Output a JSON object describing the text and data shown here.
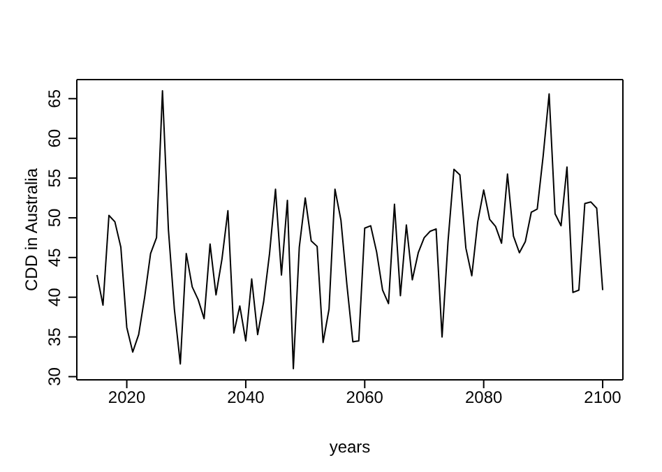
{
  "chart_data": {
    "type": "line",
    "xlabel": "years",
    "ylabel": "CDD in Australia",
    "x": [
      2015,
      2016,
      2017,
      2018,
      2019,
      2020,
      2021,
      2022,
      2023,
      2024,
      2025,
      2026,
      2027,
      2028,
      2029,
      2030,
      2031,
      2032,
      2033,
      2034,
      2035,
      2036,
      2037,
      2038,
      2039,
      2040,
      2041,
      2042,
      2043,
      2044,
      2045,
      2046,
      2047,
      2048,
      2049,
      2050,
      2051,
      2052,
      2053,
      2054,
      2055,
      2056,
      2057,
      2058,
      2059,
      2060,
      2061,
      2062,
      2063,
      2064,
      2065,
      2066,
      2067,
      2068,
      2069,
      2070,
      2071,
      2072,
      2073,
      2074,
      2075,
      2076,
      2077,
      2078,
      2079,
      2080,
      2081,
      2082,
      2083,
      2084,
      2085,
      2086,
      2087,
      2088,
      2089,
      2090,
      2091,
      2092,
      2093,
      2094,
      2095,
      2096,
      2097,
      2098,
      2099,
      2100
    ],
    "series": [
      {
        "color": "#000000",
        "values": [
          42.8,
          39,
          50.3,
          49.5,
          46.3,
          36.2,
          33.1,
          35.3,
          40,
          45.5,
          47.5,
          66,
          48.5,
          38.5,
          31.6,
          45.5,
          41.3,
          39.7,
          37.3,
          46.7,
          40.3,
          44.8,
          50.9,
          35.5,
          38.9,
          34.5,
          42.3,
          35.3,
          39.4,
          45.5,
          53.6,
          42.8,
          52.2,
          31,
          46.3,
          52.5,
          47.1,
          46.4,
          34.3,
          38.5,
          53.6,
          49.7,
          41.6,
          34.4,
          34.5,
          48.7,
          49,
          45.7,
          40.9,
          39.2,
          51.7,
          40.2,
          49.1,
          42.2,
          45.6,
          47.5,
          48.3,
          48.6,
          35,
          47,
          56.1,
          55.4,
          46.2,
          42.7,
          49.5,
          53.5,
          49.8,
          48.9,
          46.8,
          55.5,
          47.7,
          45.6,
          47,
          50.7,
          51.1,
          57.8,
          65.6,
          50.5,
          49,
          56.4,
          40.6,
          40.9,
          51.8,
          52,
          51.2,
          40.9
        ]
      }
    ],
    "xlim": [
      2011.6,
      2103.4
    ],
    "xticks": [
      2020,
      2040,
      2060,
      2080,
      2100
    ],
    "ylim": [
      29.6,
      67.4
    ],
    "yticks": [
      30,
      35,
      40,
      45,
      50,
      55,
      60,
      65
    ],
    "grid": false,
    "legend": false,
    "marker": "none",
    "line_style": "solid"
  }
}
